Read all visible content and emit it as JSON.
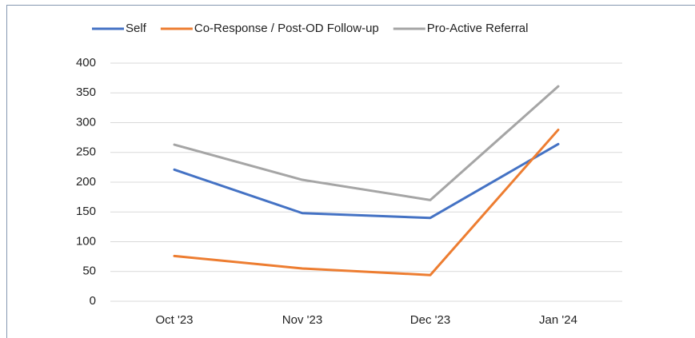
{
  "chart_data": {
    "type": "line",
    "categories": [
      "Oct '23",
      "Nov '23",
      "Dec '23",
      "Jan '24"
    ],
    "series": [
      {
        "name": "Self",
        "color": "#4472c4",
        "values": [
          221,
          148,
          140,
          264
        ]
      },
      {
        "name": "Co-Response / Post-OD Follow-up",
        "color": "#ed7d31",
        "values": [
          76,
          55,
          44,
          288
        ]
      },
      {
        "name": "Pro-Active Referral",
        "color": "#a5a5a5",
        "values": [
          263,
          204,
          170,
          361
        ]
      }
    ],
    "ylim": [
      0,
      400
    ],
    "yticks": [
      0,
      50,
      100,
      150,
      200,
      250,
      300,
      350,
      400
    ],
    "grid": true,
    "legend": "top"
  }
}
